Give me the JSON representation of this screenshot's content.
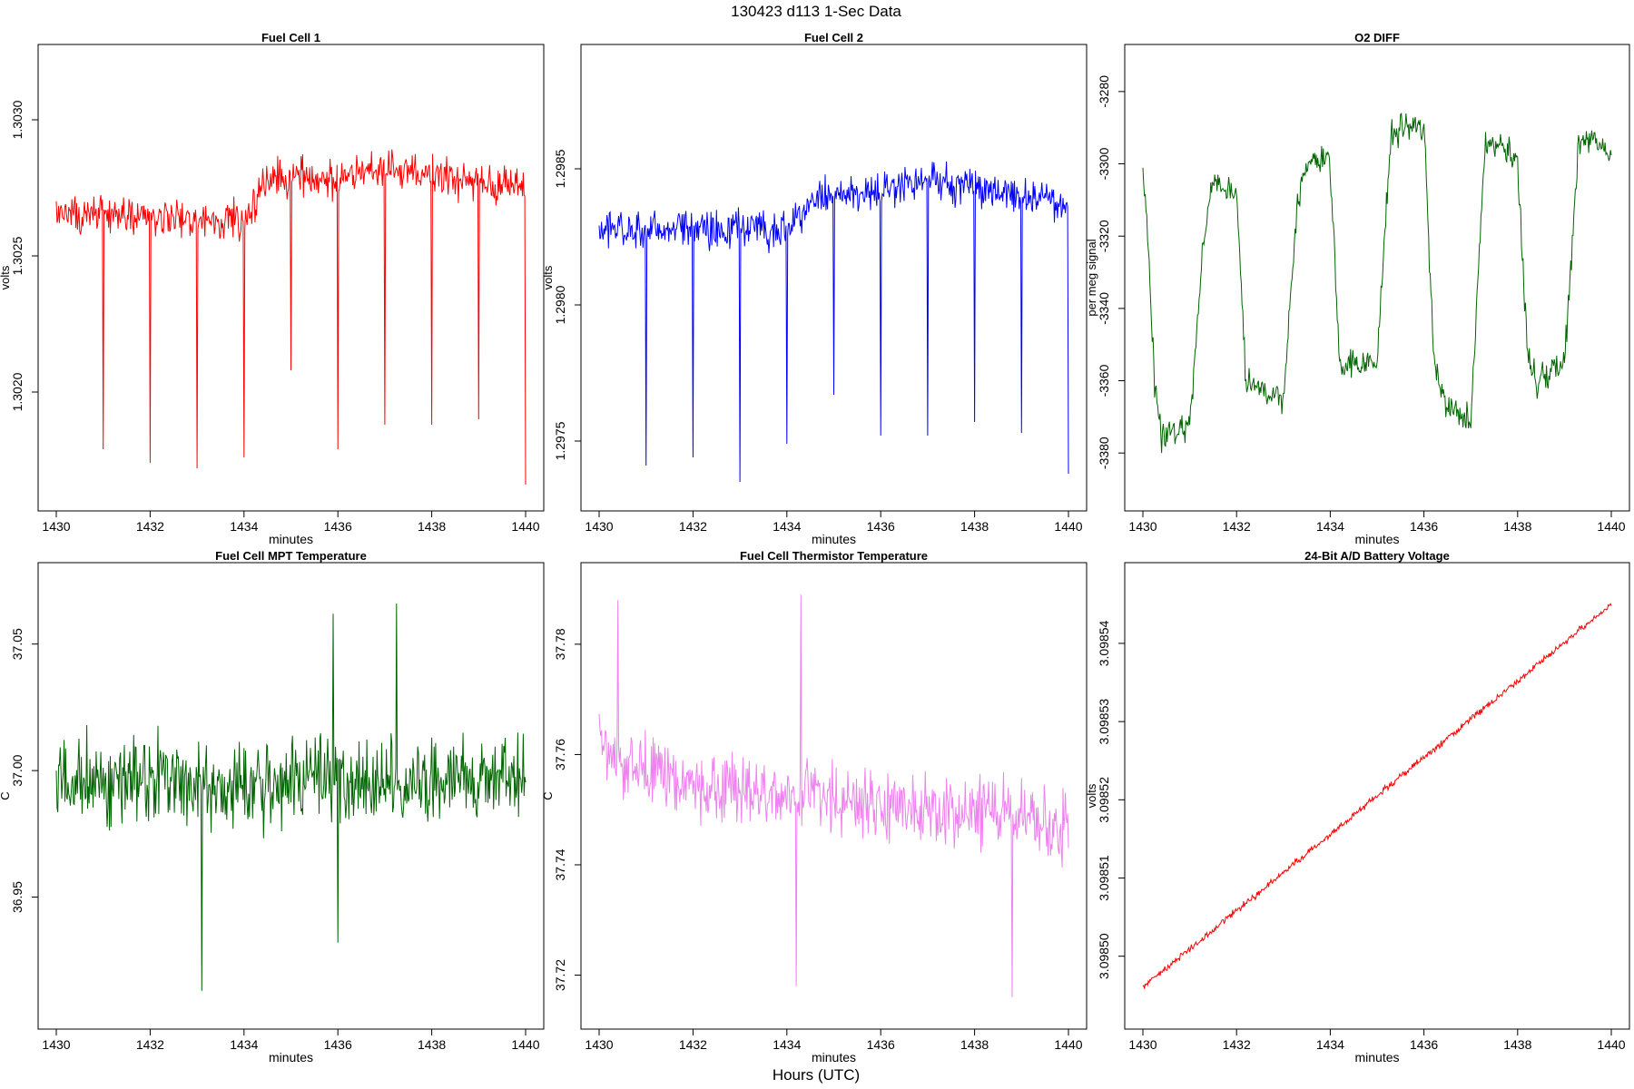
{
  "figure": {
    "title": "130423   d113   1-Sec Data",
    "xlabel": "Hours (UTC)"
  },
  "chart_data": [
    {
      "type": "line",
      "title": "Fuel Cell 1",
      "xlabel": "minutes",
      "ylabel": "volts",
      "color": "#ff0000",
      "xlim": [
        1430,
        1440
      ],
      "ylim": [
        1.30163,
        1.30321
      ],
      "xticks": [
        1430,
        1432,
        1434,
        1436,
        1438,
        1440
      ],
      "xtick_labels": [
        "1430",
        "1432",
        "1434",
        "1436",
        "1438",
        "1440"
      ],
      "yticks": [
        1.302,
        1.3025,
        1.303
      ],
      "ytick_labels": [
        "1.3020",
        "1.3025",
        "1.3030"
      ],
      "trend": [
        [
          1430,
          1.30266
        ],
        [
          1434,
          1.30263
        ],
        [
          1434.6,
          1.3028
        ],
        [
          1436,
          1.30278
        ],
        [
          1437,
          1.30282
        ],
        [
          1440,
          1.30275
        ]
      ],
      "noise": 0.0001,
      "spikes": [
        [
          1431,
          1.30179
        ],
        [
          1432,
          1.30174
        ],
        [
          1433,
          1.30172
        ],
        [
          1434,
          1.30176
        ],
        [
          1435,
          1.30208
        ],
        [
          1436,
          1.30179
        ],
        [
          1437,
          1.30188
        ],
        [
          1438,
          1.30188
        ],
        [
          1439,
          1.3019
        ],
        [
          1440,
          1.30166
        ]
      ]
    },
    {
      "type": "line",
      "title": "Fuel Cell 2",
      "xlabel": "minutes",
      "ylabel": "volts",
      "color": "#0000ff",
      "xlim": [
        1430,
        1440
      ],
      "ylim": [
        1.29731,
        1.29889
      ],
      "xticks": [
        1430,
        1432,
        1434,
        1436,
        1438,
        1440
      ],
      "xtick_labels": [
        "1430",
        "1432",
        "1434",
        "1436",
        "1438",
        "1440"
      ],
      "yticks": [
        1.2975,
        1.298,
        1.2985
      ],
      "ytick_labels": [
        "1.2975",
        "1.2980",
        "1.2985"
      ],
      "trend": [
        [
          1430,
          1.29828
        ],
        [
          1434,
          1.29828
        ],
        [
          1434.6,
          1.2984
        ],
        [
          1436,
          1.29842
        ],
        [
          1437,
          1.29845
        ],
        [
          1440,
          1.29838
        ]
      ],
      "noise": 0.0001,
      "spikes": [
        [
          1431,
          1.29741
        ],
        [
          1432,
          1.29744
        ],
        [
          1433,
          1.29735
        ],
        [
          1434,
          1.29749
        ],
        [
          1435,
          1.29767
        ],
        [
          1436,
          1.29752
        ],
        [
          1437,
          1.29752
        ],
        [
          1438,
          1.29757
        ],
        [
          1439,
          1.29753
        ],
        [
          1440,
          1.29738
        ]
      ]
    },
    {
      "type": "line",
      "title": "O2 DIFF",
      "xlabel": "minutes",
      "ylabel": "per meg signal",
      "color": "#006400",
      "xlim": [
        1430,
        1440
      ],
      "ylim": [
        -3391,
        -3272
      ],
      "xticks": [
        1430,
        1432,
        1434,
        1436,
        1438,
        1440
      ],
      "xtick_labels": [
        "1430",
        "1432",
        "1434",
        "1436",
        "1438",
        "1440"
      ],
      "yticks": [
        -3380,
        -3360,
        -3340,
        -3320,
        -3300,
        -3280
      ],
      "ytick_labels": [
        "-3380",
        "-3360",
        "-3340",
        "-3320",
        "-3300",
        "-3280"
      ],
      "trend": [
        [
          1430,
          -3300
        ],
        [
          1430.1,
          -3320
        ],
        [
          1430.25,
          -3360
        ],
        [
          1430.4,
          -3375
        ],
        [
          1431,
          -3372
        ],
        [
          1431.3,
          -3320
        ],
        [
          1431.5,
          -3305
        ],
        [
          1432,
          -3308
        ],
        [
          1432.2,
          -3360
        ],
        [
          1433,
          -3365
        ],
        [
          1433.3,
          -3310
        ],
        [
          1433.6,
          -3298
        ],
        [
          1434,
          -3300
        ],
        [
          1434.2,
          -3355
        ],
        [
          1435,
          -3355
        ],
        [
          1435.3,
          -3290
        ],
        [
          1435.6,
          -3290
        ],
        [
          1436,
          -3290
        ],
        [
          1436.2,
          -3352
        ],
        [
          1436.4,
          -3365
        ],
        [
          1437,
          -3372
        ],
        [
          1437.3,
          -3295
        ],
        [
          1437.6,
          -3294
        ],
        [
          1438,
          -3298
        ],
        [
          1438.2,
          -3352
        ],
        [
          1438.4,
          -3360
        ],
        [
          1439,
          -3355
        ],
        [
          1439.3,
          -3295
        ],
        [
          1439.6,
          -3292
        ],
        [
          1440,
          -3300
        ]
      ],
      "noise": 6
    },
    {
      "type": "line",
      "title": "Fuel Cell MPT Temperature",
      "xlabel": "minutes",
      "ylabel": "C",
      "color": "#006400",
      "xlim": [
        1430,
        1440
      ],
      "ylim": [
        36.905,
        37.075
      ],
      "xticks": [
        1430,
        1432,
        1434,
        1436,
        1438,
        1440
      ],
      "xtick_labels": [
        "1430",
        "1432",
        "1434",
        "1436",
        "1438",
        "1440"
      ],
      "yticks": [
        36.95,
        37.0,
        37.05
      ],
      "ytick_labels": [
        "36.95",
        "37.00",
        "37.05"
      ],
      "trend": [
        [
          1430,
          36.995
        ],
        [
          1440,
          36.997
        ]
      ],
      "noise": 0.026,
      "spikes": [
        [
          1433.1,
          36.913
        ],
        [
          1437.25,
          37.066
        ],
        [
          1435.9,
          37.062
        ],
        [
          1436,
          36.932
        ]
      ]
    },
    {
      "type": "line",
      "title": "Fuel Cell Thermistor Temperature",
      "xlabel": "minutes",
      "ylabel": "C",
      "color": "#ee82ee",
      "xlim": [
        1430,
        1440
      ],
      "ylim": [
        37.7135,
        37.7915
      ],
      "xticks": [
        1430,
        1432,
        1434,
        1436,
        1438,
        1440
      ],
      "xtick_labels": [
        "1430",
        "1432",
        "1434",
        "1436",
        "1438",
        "1440"
      ],
      "yticks": [
        37.72,
        37.74,
        37.76,
        37.78
      ],
      "ytick_labels": [
        "37.72",
        "37.74",
        "37.76",
        "37.78"
      ],
      "trend": [
        [
          1430,
          37.762
        ],
        [
          1431,
          37.756
        ],
        [
          1434,
          37.753
        ],
        [
          1436,
          37.751
        ],
        [
          1440,
          37.748
        ]
      ],
      "noise": 0.0095,
      "spikes": [
        [
          1430.4,
          37.788
        ],
        [
          1434.3,
          37.789
        ],
        [
          1438.8,
          37.716
        ],
        [
          1434.2,
          37.718
        ]
      ]
    },
    {
      "type": "line",
      "title": "24-Bit A/D Battery Voltage",
      "xlabel": "minutes",
      "ylabel": "volts",
      "color": "#ff0000",
      "xlim": [
        1430,
        1440
      ],
      "ylim": [
        3.098493,
        3.098548
      ],
      "xticks": [
        1430,
        1432,
        1434,
        1436,
        1438,
        1440
      ],
      "xtick_labels": [
        "1430",
        "1432",
        "1434",
        "1436",
        "1438",
        "1440"
      ],
      "yticks": [
        3.0985,
        3.09851,
        3.09852,
        3.09853,
        3.09854
      ],
      "ytick_labels": [
        "3.09850",
        "3.09851",
        "3.09852",
        "3.09853",
        "3.09854"
      ],
      "trend": [
        [
          1430,
          3.098496
        ],
        [
          1440,
          3.098545
        ]
      ],
      "noise": 6e-07
    }
  ]
}
